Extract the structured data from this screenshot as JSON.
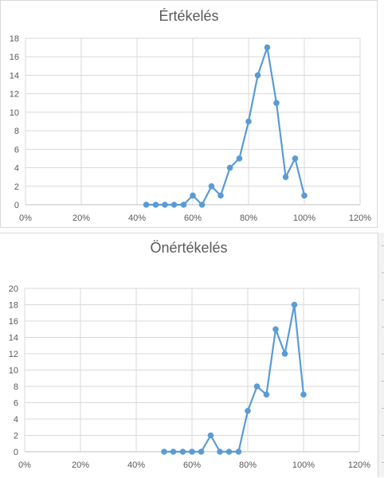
{
  "charts": [
    {
      "type": "line",
      "title": "Értékelés",
      "xlabel": "",
      "ylabel": "",
      "xlim": [
        0,
        1.2
      ],
      "ylim": [
        0,
        18
      ],
      "y_ticks": [
        0,
        2,
        4,
        6,
        8,
        10,
        12,
        14,
        16,
        18
      ],
      "x_ticks": [
        "0%",
        "20%",
        "40%",
        "60%",
        "80%",
        "100%",
        "120%"
      ],
      "x_tick_values": [
        0,
        0.2,
        0.4,
        0.6,
        0.8,
        1.0,
        1.2
      ],
      "grid": true,
      "legend": "none",
      "color": "#5b9bd5",
      "x": [
        0.433,
        0.467,
        0.5,
        0.533,
        0.567,
        0.6,
        0.633,
        0.667,
        0.7,
        0.733,
        0.767,
        0.8,
        0.833,
        0.867,
        0.9,
        0.933,
        0.967,
        1.0
      ],
      "values": [
        0,
        0,
        0,
        0,
        0,
        1,
        0,
        2,
        1,
        4,
        5,
        9,
        14,
        17,
        11,
        3,
        5,
        1
      ]
    },
    {
      "type": "line",
      "title": "Önértékelés",
      "xlabel": "",
      "ylabel": "",
      "xlim": [
        0,
        1.2
      ],
      "ylim": [
        0,
        20
      ],
      "y_ticks": [
        0,
        2,
        4,
        6,
        8,
        10,
        12,
        14,
        16,
        18,
        20
      ],
      "x_ticks": [
        "0%",
        "20%",
        "40%",
        "60%",
        "80%",
        "100%",
        "120%"
      ],
      "x_tick_values": [
        0,
        0.2,
        0.4,
        0.6,
        0.8,
        1.0,
        1.2
      ],
      "grid": true,
      "legend": "none",
      "color": "#5b9bd5",
      "x": [
        0.5,
        0.533,
        0.567,
        0.6,
        0.633,
        0.667,
        0.7,
        0.733,
        0.767,
        0.8,
        0.833,
        0.867,
        0.9,
        0.933,
        0.967,
        1.0
      ],
      "values": [
        0,
        0,
        0,
        0,
        0,
        2,
        0,
        0,
        0,
        5,
        8,
        7,
        15,
        12,
        18,
        7
      ]
    }
  ]
}
